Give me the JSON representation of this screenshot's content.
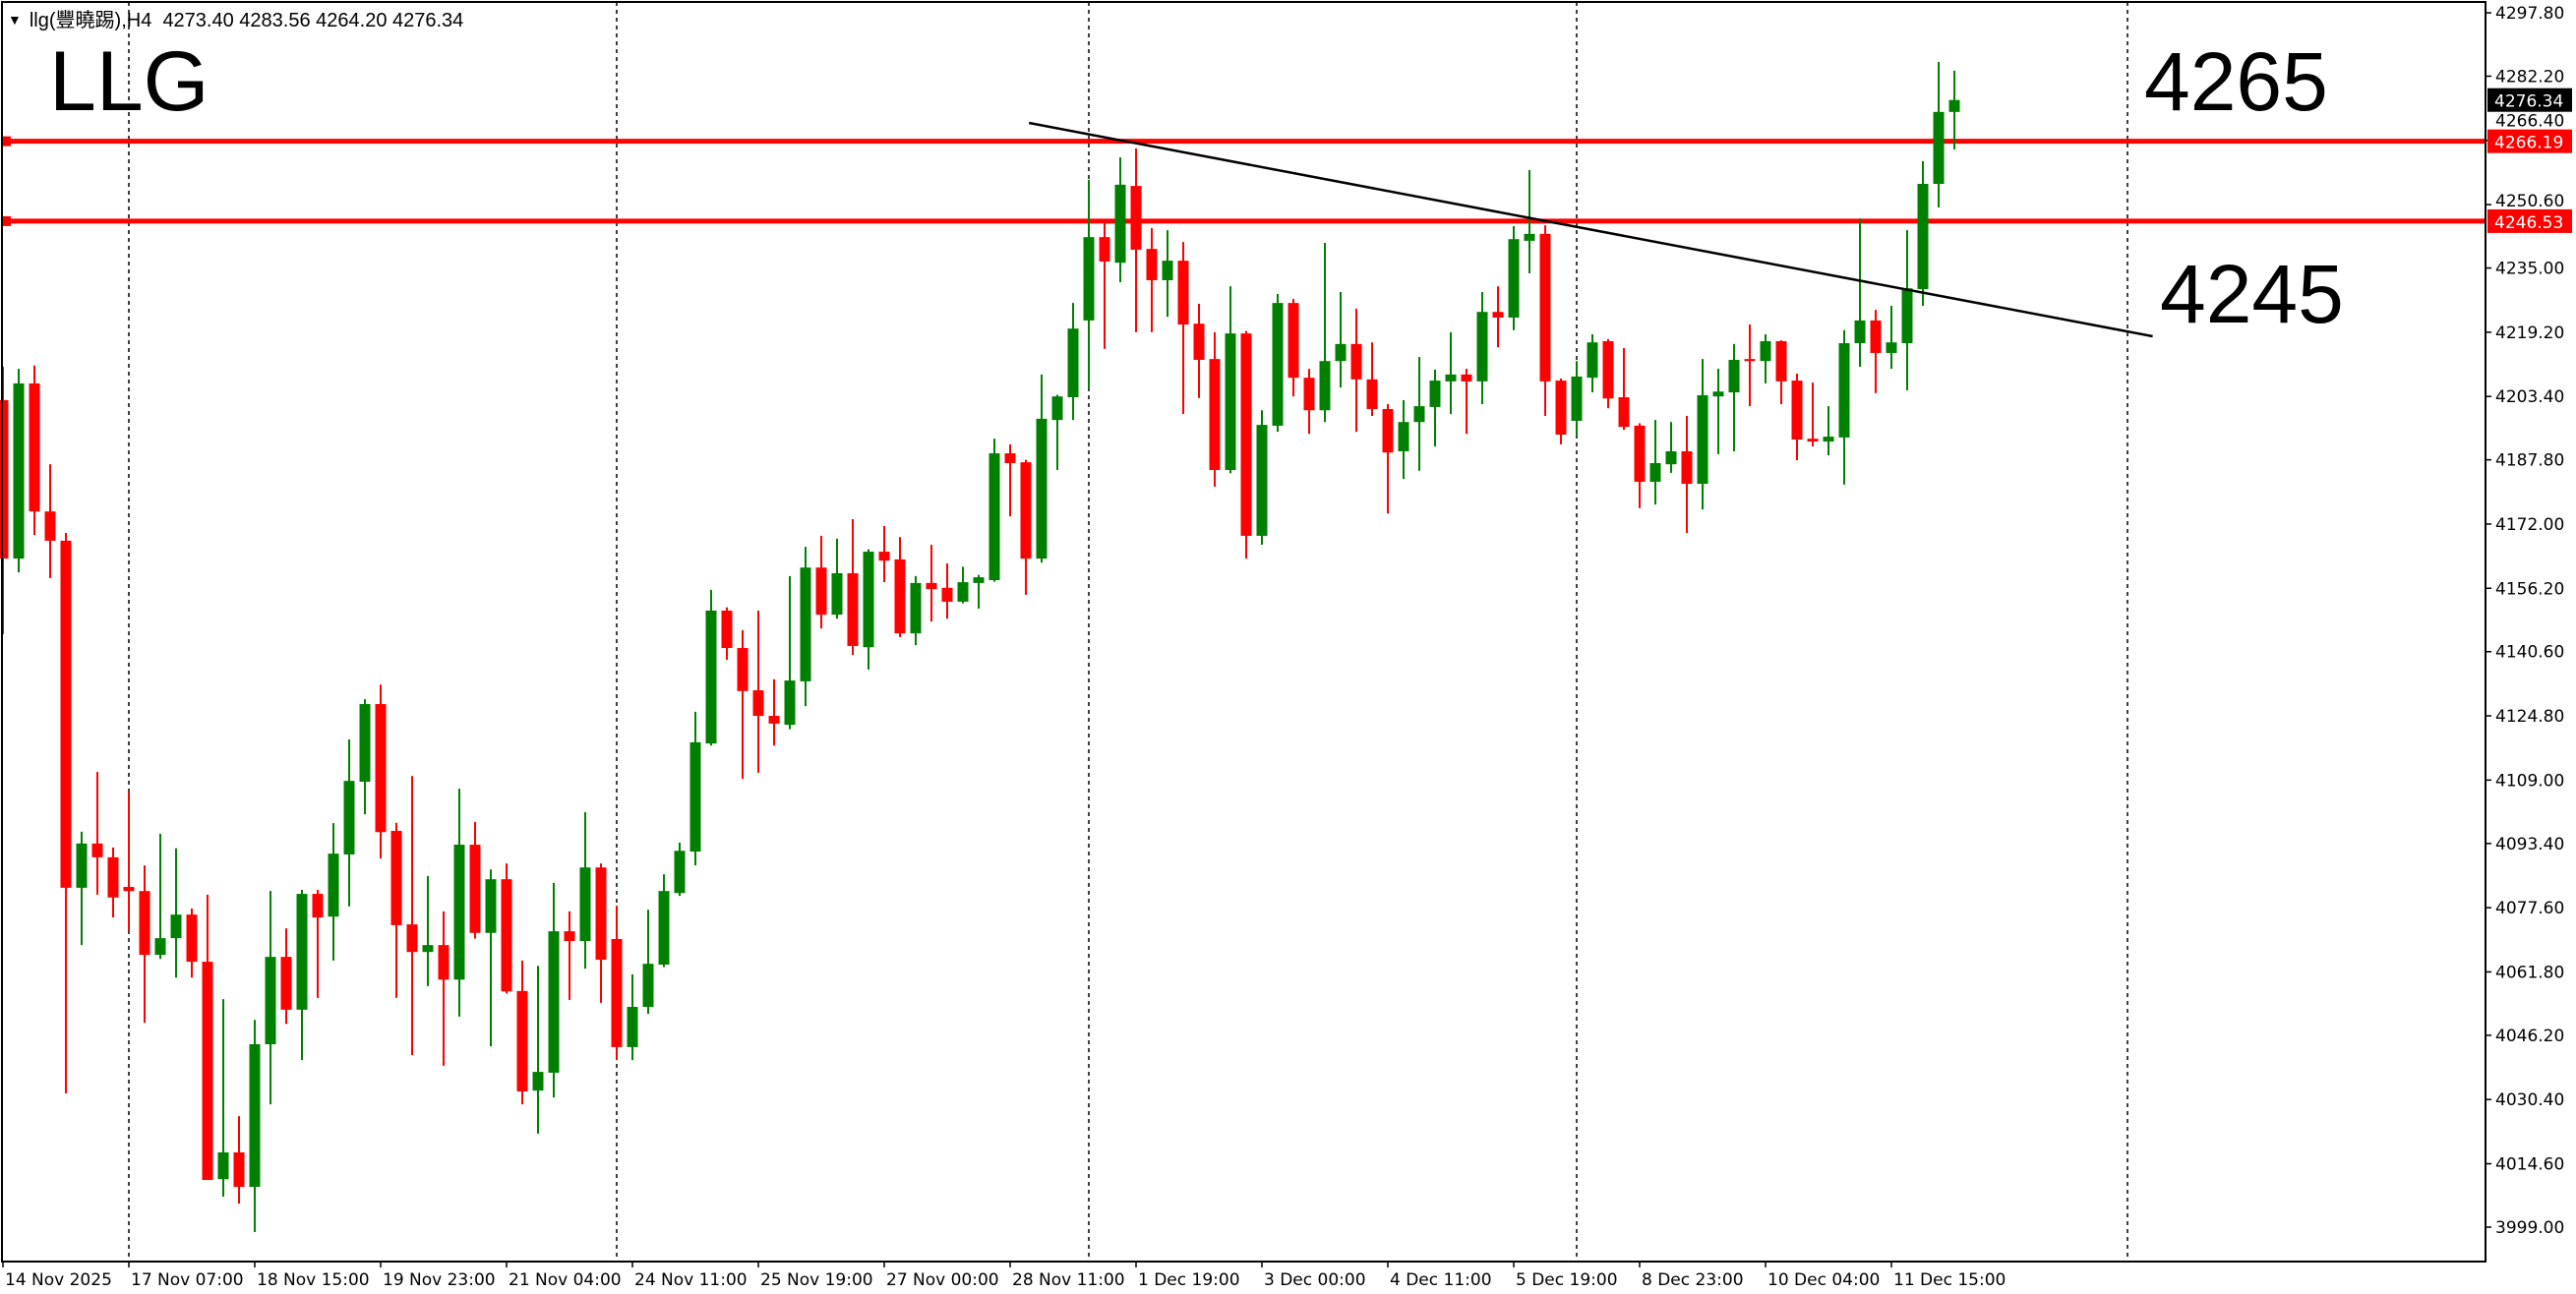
{
  "header": {
    "symbol": "llg(豐曉踢),H4",
    "ohlc": "4273.40 4283.56 4264.20 4276.34"
  },
  "annotations": {
    "title": "LLG",
    "level_upper": "4265",
    "level_lower": "4245"
  },
  "colors": {
    "bull": "#008000",
    "bear": "#ff0000",
    "level_line": "#ff0000",
    "trendline": "#000000",
    "current_price_tag": "#000000"
  },
  "chart_data": {
    "type": "candlestick",
    "timeframe": "H4",
    "ylim": [
      3999.0,
      4297.8
    ],
    "y_ticks": [
      "4297.80",
      "4282.20",
      "4266.40",
      "4250.60",
      "4235.00",
      "4219.20",
      "4203.40",
      "4187.80",
      "4172.00",
      "4156.20",
      "4140.60",
      "4124.80",
      "4109.00",
      "4093.40",
      "4077.60",
      "4061.80",
      "4046.20",
      "4030.40",
      "4014.60",
      "3999.00"
    ],
    "x_tick_labels": [
      "14 Nov 2025",
      "17 Nov 07:00",
      "18 Nov 15:00",
      "19 Nov 23:00",
      "21 Nov 04:00",
      "24 Nov 11:00",
      "25 Nov 19:00",
      "27 Nov 00:00",
      "28 Nov 11:00",
      "1 Dec 19:00",
      "3 Dec 00:00",
      "4 Dec 11:00",
      "5 Dec 19:00",
      "8 Dec 23:00",
      "10 Dec 04:00",
      "11 Dec 15:00"
    ],
    "x_tick_every_bars": 8,
    "week_separators_bar_index": [
      8,
      39,
      69,
      100,
      135
    ],
    "grid": false,
    "horizontal_levels": [
      {
        "price": 4266.19,
        "label": "4266.19"
      },
      {
        "price": 4246.53,
        "label": "4246.53"
      }
    ],
    "current_price": {
      "price": 4276.34,
      "label": "4276.34"
    },
    "trendline": {
      "start": {
        "bar": 65.2,
        "price": 4270.7
      },
      "end": {
        "bar": 136.6,
        "price": 4218.2
      }
    },
    "candles_ohlc": [
      [
        4202.5,
        4210.7,
        4144.9,
        4163.5
      ],
      [
        4163.5,
        4210.2,
        4160.1,
        4206.6
      ],
      [
        4206.6,
        4211,
        4169.3,
        4175.1
      ],
      [
        4175.1,
        4186.7,
        4158.7,
        4167.9
      ],
      [
        4167.9,
        4169.8,
        4031.9,
        4082.5
      ],
      [
        4082.5,
        4096.3,
        4068.4,
        4093.4
      ],
      [
        4093.4,
        4111,
        4080.8,
        4090
      ],
      [
        4090,
        4092.4,
        4075.2,
        4080.1
      ],
      [
        4082.7,
        4106.2,
        4072,
        4081.7
      ],
      [
        4081.7,
        4088,
        4049.3,
        4066
      ],
      [
        4066,
        4095.8,
        4065,
        4070.1
      ],
      [
        4070.1,
        4092.2,
        4060.4,
        4075.9
      ],
      [
        4075.9,
        4077.4,
        4060.4,
        4064.3
      ],
      [
        4064.3,
        4080.8,
        4010.6,
        4010.6
      ],
      [
        4010.8,
        4055.1,
        4006.5,
        4017.4
      ],
      [
        4017.4,
        4026.3,
        4004.8,
        4008.9
      ],
      [
        4008.9,
        4050,
        3997.8,
        4044
      ],
      [
        4044,
        4081.7,
        4029.2,
        4065.5
      ],
      [
        4065.5,
        4072.5,
        4049,
        4052.5
      ],
      [
        4052.5,
        4082,
        4040.1,
        4081
      ],
      [
        4081,
        4082,
        4055.4,
        4075.2
      ],
      [
        4075.4,
        4098.4,
        4064.6,
        4090.9
      ],
      [
        4090.7,
        4119,
        4077.9,
        4108.8
      ],
      [
        4108.6,
        4128.9,
        4100.6,
        4127.7
      ],
      [
        4127.7,
        4132.5,
        4089.7,
        4096.2
      ],
      [
        4096.5,
        4098.5,
        4055.4,
        4073.3
      ],
      [
        4073.5,
        4110,
        4041.3,
        4066.7
      ],
      [
        4066.7,
        4085.4,
        4058.3,
        4068.4
      ],
      [
        4068.4,
        4076.7,
        4038.7,
        4059.9
      ],
      [
        4059.9,
        4106.9,
        4050.8,
        4093.1
      ],
      [
        4093.1,
        4098.7,
        4070,
        4071.4
      ],
      [
        4071.4,
        4087,
        4043.5,
        4084.6
      ],
      [
        4084.6,
        4088.5,
        4056.5,
        4057
      ],
      [
        4057.1,
        4064.6,
        4029.2,
        4032.4
      ],
      [
        4032.6,
        4063.3,
        4022,
        4037.2
      ],
      [
        4037,
        4083.7,
        4030.9,
        4071.8
      ],
      [
        4071.8,
        4076.7,
        4054.9,
        4069.4
      ],
      [
        4069.4,
        4101.1,
        4062.6,
        4087.5
      ],
      [
        4087.5,
        4088.5,
        4054.2,
        4064.8
      ],
      [
        4069.9,
        4078.1,
        4040.1,
        4043.3
      ],
      [
        4043.3,
        4061.2,
        4040.1,
        4053.2
      ],
      [
        4053.2,
        4077.1,
        4051.5,
        4063.8
      ],
      [
        4063.6,
        4085.8,
        4063,
        4081.7
      ],
      [
        4081.2,
        4093.6,
        4080.5,
        4091.6
      ],
      [
        4091.4,
        4125.8,
        4088,
        4118.3
      ],
      [
        4118,
        4155.8,
        4117.5,
        4150.7
      ],
      [
        4150.7,
        4151.5,
        4138.6,
        4141.5
      ],
      [
        4141.5,
        4145.9,
        4109.3,
        4130.9
      ],
      [
        4131.1,
        4150.7,
        4110.8,
        4124.8
      ],
      [
        4124.8,
        4133.8,
        4117.5,
        4122.9
      ],
      [
        4122.6,
        4159.2,
        4121.5,
        4133.5
      ],
      [
        4133.3,
        4166.4,
        4127.2,
        4161.3
      ],
      [
        4161.3,
        4169.1,
        4146.3,
        4149.7
      ],
      [
        4149.7,
        4168.4,
        4148.7,
        4159.9
      ],
      [
        4159.9,
        4173.2,
        4139.8,
        4142
      ],
      [
        4141.7,
        4165.8,
        4136.2,
        4165.2
      ],
      [
        4165.2,
        4171.5,
        4157.7,
        4163
      ],
      [
        4163.3,
        4168.8,
        4144.2,
        4145.1
      ],
      [
        4145.1,
        4159.2,
        4142.2,
        4157.5
      ],
      [
        4157.5,
        4166.9,
        4148,
        4156
      ],
      [
        4156.3,
        4162.3,
        4148.7,
        4152.9
      ],
      [
        4152.9,
        4161.5,
        4152.5,
        4157.7
      ],
      [
        4157.5,
        4159.5,
        4151.2,
        4158.9
      ],
      [
        4158.2,
        4193,
        4157.8,
        4189.4
      ],
      [
        4189.4,
        4191.6,
        4173.9,
        4187
      ],
      [
        4187.2,
        4187.8,
        4154.6,
        4163.5
      ],
      [
        4163.5,
        4208.8,
        4162.5,
        4197.9
      ],
      [
        4197.6,
        4203.8,
        4185.3,
        4203.4
      ],
      [
        4203.2,
        4226.4,
        4197.6,
        4220.1
      ],
      [
        4222.1,
        4256.7,
        4205.4,
        4242.6
      ],
      [
        4242.6,
        4246,
        4215.1,
        4236.6
      ],
      [
        4236.3,
        4262.2,
        4231.5,
        4255.5
      ],
      [
        4255.2,
        4264.4,
        4219.2,
        4239.5
      ],
      [
        4239.7,
        4244.8,
        4219.2,
        4232
      ],
      [
        4232,
        4244.3,
        4223,
        4236.8
      ],
      [
        4236.8,
        4241.4,
        4199.1,
        4221.1
      ],
      [
        4221.3,
        4226.2,
        4203,
        4212.4
      ],
      [
        4212.6,
        4219.2,
        4181.2,
        4185.3
      ],
      [
        4185.3,
        4230.5,
        4184.5,
        4218.9
      ],
      [
        4218.9,
        4219.5,
        4163.5,
        4169.1
      ],
      [
        4169.1,
        4200,
        4166.9,
        4196.4
      ],
      [
        4196.2,
        4228.6,
        4194.7,
        4226.4
      ],
      [
        4226.4,
        4227.4,
        4203.4,
        4208
      ],
      [
        4208,
        4210.2,
        4194.2,
        4200
      ],
      [
        4200,
        4241.2,
        4197.1,
        4212.1
      ],
      [
        4212.1,
        4229.1,
        4205.6,
        4216.3
      ],
      [
        4216.3,
        4225,
        4194.7,
        4207.6
      ],
      [
        4207.6,
        4216.7,
        4198.6,
        4200.3
      ],
      [
        4200.3,
        4201.5,
        4174.6,
        4189.6
      ],
      [
        4189.9,
        4202.5,
        4183.1,
        4197.1
      ],
      [
        4197.1,
        4213.1,
        4185.1,
        4201
      ],
      [
        4200.8,
        4210,
        4191.1,
        4207.3
      ],
      [
        4207.1,
        4219.2,
        4199.1,
        4208.8
      ],
      [
        4208.8,
        4210.2,
        4194.2,
        4207.1
      ],
      [
        4207.1,
        4229.1,
        4201.5,
        4224.2
      ],
      [
        4224.2,
        4230.5,
        4215.5,
        4222.8
      ],
      [
        4222.8,
        4245.3,
        4219.7,
        4242.1
      ],
      [
        4241.7,
        4259.1,
        4233.7,
        4243.4
      ],
      [
        4243.4,
        4245.5,
        4198.6,
        4207.1
      ],
      [
        4207.3,
        4207.8,
        4191.6,
        4194
      ],
      [
        4197.4,
        4212.1,
        4193.9,
        4208.3
      ],
      [
        4208,
        4218.7,
        4204.4,
        4216.7
      ],
      [
        4217,
        4217.5,
        4200.5,
        4202.9
      ],
      [
        4203.2,
        4215.3,
        4195.2,
        4195.9
      ],
      [
        4196.2,
        4196.8,
        4175.9,
        4182.4
      ],
      [
        4182.4,
        4197.6,
        4176.8,
        4187
      ],
      [
        4186.7,
        4197.1,
        4184.6,
        4189.9
      ],
      [
        4189.9,
        4198.6,
        4169.8,
        4181.9
      ],
      [
        4181.9,
        4212.6,
        4175.6,
        4203.7
      ],
      [
        4203.4,
        4210.2,
        4189.2,
        4204.6
      ],
      [
        4204.4,
        4216.3,
        4189.9,
        4212.4
      ],
      [
        4212.6,
        4221.1,
        4201,
        4212.1
      ],
      [
        4212.1,
        4218.7,
        4206.6,
        4217
      ],
      [
        4217,
        4217.2,
        4201.5,
        4207.1
      ],
      [
        4207.3,
        4209,
        4187.7,
        4192.8
      ],
      [
        4193,
        4206.8,
        4191.1,
        4192.3
      ],
      [
        4192.3,
        4201,
        4188.9,
        4193.5
      ],
      [
        4193.3,
        4219.7,
        4181.7,
        4216.5
      ],
      [
        4216.5,
        4247.2,
        4210.7,
        4222.1
      ],
      [
        4222.1,
        4224.7,
        4204.2,
        4214.1
      ],
      [
        4214.1,
        4225.7,
        4210.2,
        4216.7
      ],
      [
        4216.5,
        4244.3,
        4204.9,
        4230
      ],
      [
        4229.8,
        4261.3,
        4225.7,
        4255.7
      ],
      [
        4255.7,
        4285.7,
        4249.9,
        4273.4
      ],
      [
        4273.4,
        4283.56,
        4264.2,
        4276.34
      ]
    ]
  }
}
